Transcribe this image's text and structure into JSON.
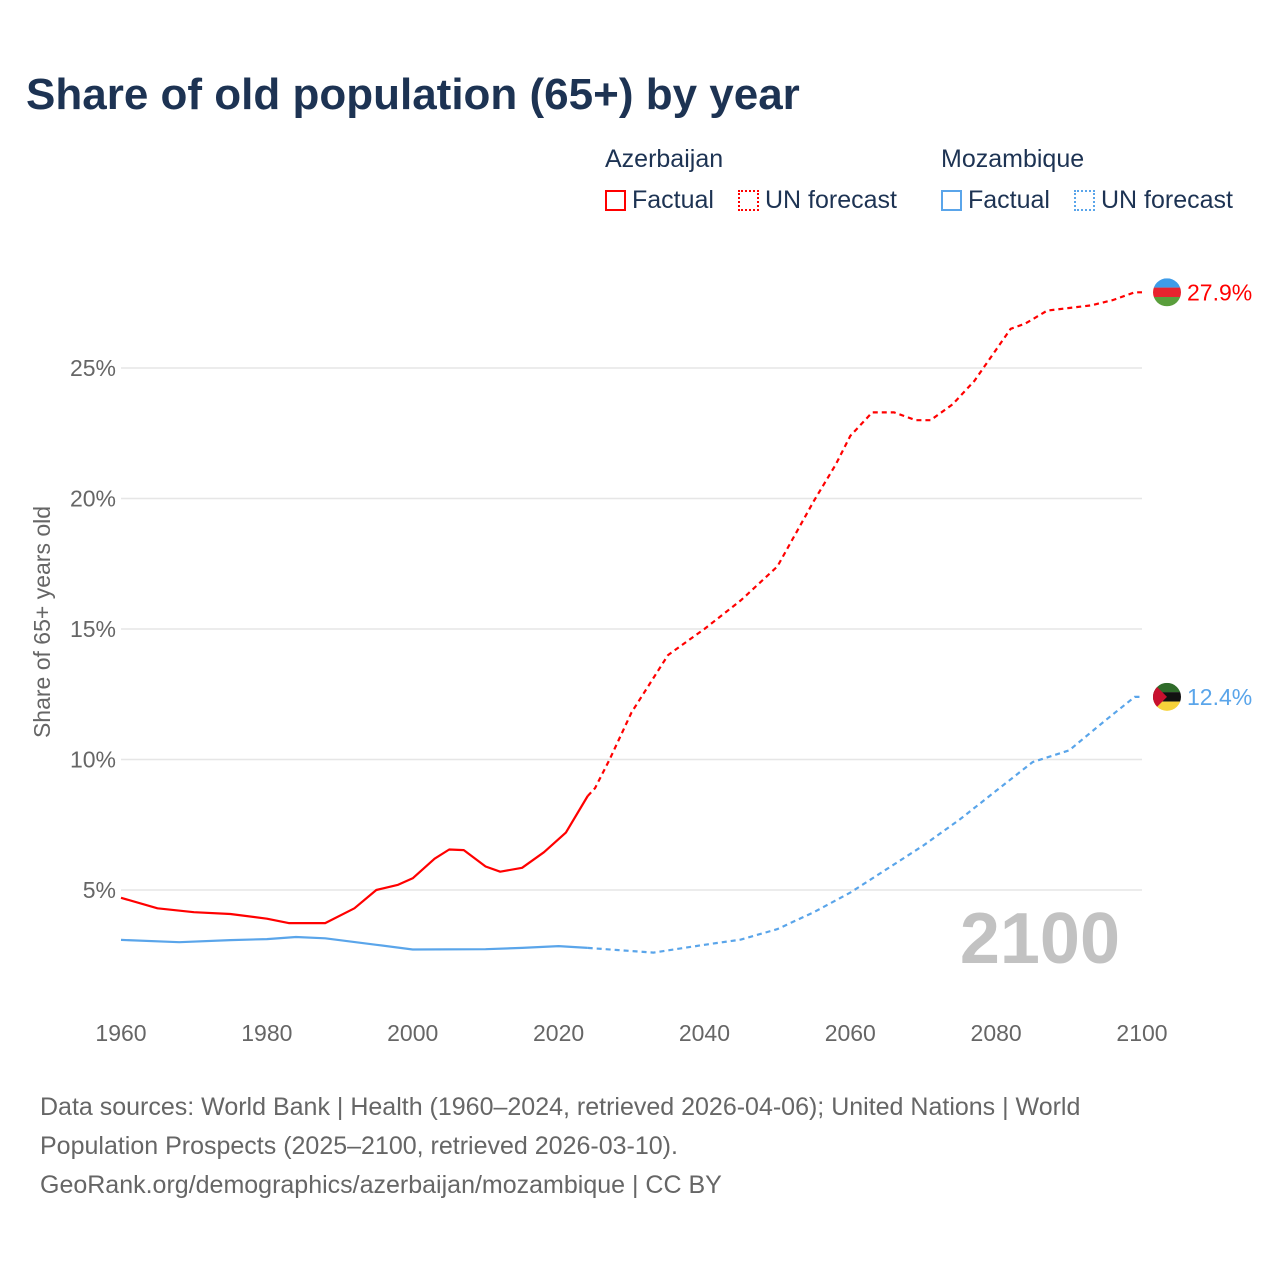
{
  "chart_data": {
    "type": "line",
    "title": "Share of old population (65+) by year",
    "ylabel": "Share of 65+ years old",
    "xlabel": "",
    "xlim": [
      1960,
      2100
    ],
    "ylim": [
      0,
      28
    ],
    "yticks": [
      5,
      10,
      15,
      20,
      25
    ],
    "ytick_labels": [
      "5%",
      "10%",
      "15%",
      "20%",
      "25%"
    ],
    "xticks": [
      1960,
      1980,
      2000,
      2020,
      2040,
      2060,
      2080,
      2100
    ],
    "xtick_labels": [
      "1960",
      "1980",
      "2000",
      "2020",
      "2040",
      "2060",
      "2080",
      "2100"
    ],
    "year_watermark": "2100",
    "legend": {
      "groups": [
        {
          "name": "Azerbaijan",
          "items": [
            "Factual",
            "UN forecast"
          ],
          "color": "#ff0000"
        },
        {
          "name": "Mozambique",
          "items": [
            "Factual",
            "UN forecast"
          ],
          "color": "#5aa5ea"
        }
      ]
    },
    "series": [
      {
        "name": "Azerbaijan",
        "color": "#ff0000",
        "end_label": "27.9%",
        "factual": [
          [
            1960,
            4.7
          ],
          [
            1965,
            4.3
          ],
          [
            1970,
            4.15
          ],
          [
            1975,
            4.08
          ],
          [
            1980,
            3.9
          ],
          [
            1983,
            3.73
          ],
          [
            1988,
            3.73
          ],
          [
            1992,
            4.3
          ],
          [
            1995,
            5.0
          ],
          [
            1998,
            5.2
          ],
          [
            2000,
            5.45
          ],
          [
            2003,
            6.2
          ],
          [
            2005,
            6.55
          ],
          [
            2007,
            6.53
          ],
          [
            2010,
            5.9
          ],
          [
            2012,
            5.7
          ],
          [
            2015,
            5.85
          ],
          [
            2018,
            6.45
          ],
          [
            2021,
            7.2
          ],
          [
            2024,
            8.6
          ]
        ],
        "forecast": [
          [
            2024,
            8.6
          ],
          [
            2025,
            8.9
          ],
          [
            2027,
            10.0
          ],
          [
            2030,
            11.8
          ],
          [
            2035,
            14.0
          ],
          [
            2038,
            14.6
          ],
          [
            2040,
            15.0
          ],
          [
            2045,
            16.1
          ],
          [
            2050,
            17.4
          ],
          [
            2055,
            19.9
          ],
          [
            2058,
            21.3
          ],
          [
            2060,
            22.4
          ],
          [
            2063,
            23.3
          ],
          [
            2066,
            23.3
          ],
          [
            2069,
            23.0
          ],
          [
            2071,
            23.0
          ],
          [
            2074,
            23.6
          ],
          [
            2077,
            24.5
          ],
          [
            2080,
            25.7
          ],
          [
            2082,
            26.5
          ],
          [
            2084,
            26.7
          ],
          [
            2087,
            27.2
          ],
          [
            2090,
            27.3
          ],
          [
            2093,
            27.4
          ],
          [
            2096,
            27.6
          ],
          [
            2099,
            27.9
          ],
          [
            2100,
            27.9
          ]
        ]
      },
      {
        "name": "Mozambique",
        "color": "#5aa5ea",
        "end_label": "12.4%",
        "factual": [
          [
            1960,
            3.09
          ],
          [
            1968,
            3.0
          ],
          [
            1975,
            3.08
          ],
          [
            1980,
            3.12
          ],
          [
            1984,
            3.2
          ],
          [
            1988,
            3.15
          ],
          [
            1995,
            2.9
          ],
          [
            2000,
            2.72
          ],
          [
            2010,
            2.73
          ],
          [
            2015,
            2.78
          ],
          [
            2020,
            2.85
          ],
          [
            2024,
            2.78
          ]
        ],
        "forecast": [
          [
            2024,
            2.78
          ],
          [
            2028,
            2.7
          ],
          [
            2033,
            2.6
          ],
          [
            2040,
            2.9
          ],
          [
            2045,
            3.1
          ],
          [
            2050,
            3.5
          ],
          [
            2055,
            4.15
          ],
          [
            2060,
            4.9
          ],
          [
            2065,
            5.8
          ],
          [
            2070,
            6.7
          ],
          [
            2075,
            7.7
          ],
          [
            2080,
            8.8
          ],
          [
            2085,
            9.9
          ],
          [
            2090,
            10.35
          ],
          [
            2095,
            11.5
          ],
          [
            2099,
            12.4
          ],
          [
            2100,
            12.4
          ]
        ]
      }
    ]
  },
  "footer": {
    "sources": "Data sources: World Bank | Health (1960–2024, retrieved 2026-04-06); United Nations | World Population Prospects (2025–2100, retrieved 2026-03-10).",
    "link": "GeoRank.org/demographics/azerbaijan/mozambique | CC BY"
  }
}
